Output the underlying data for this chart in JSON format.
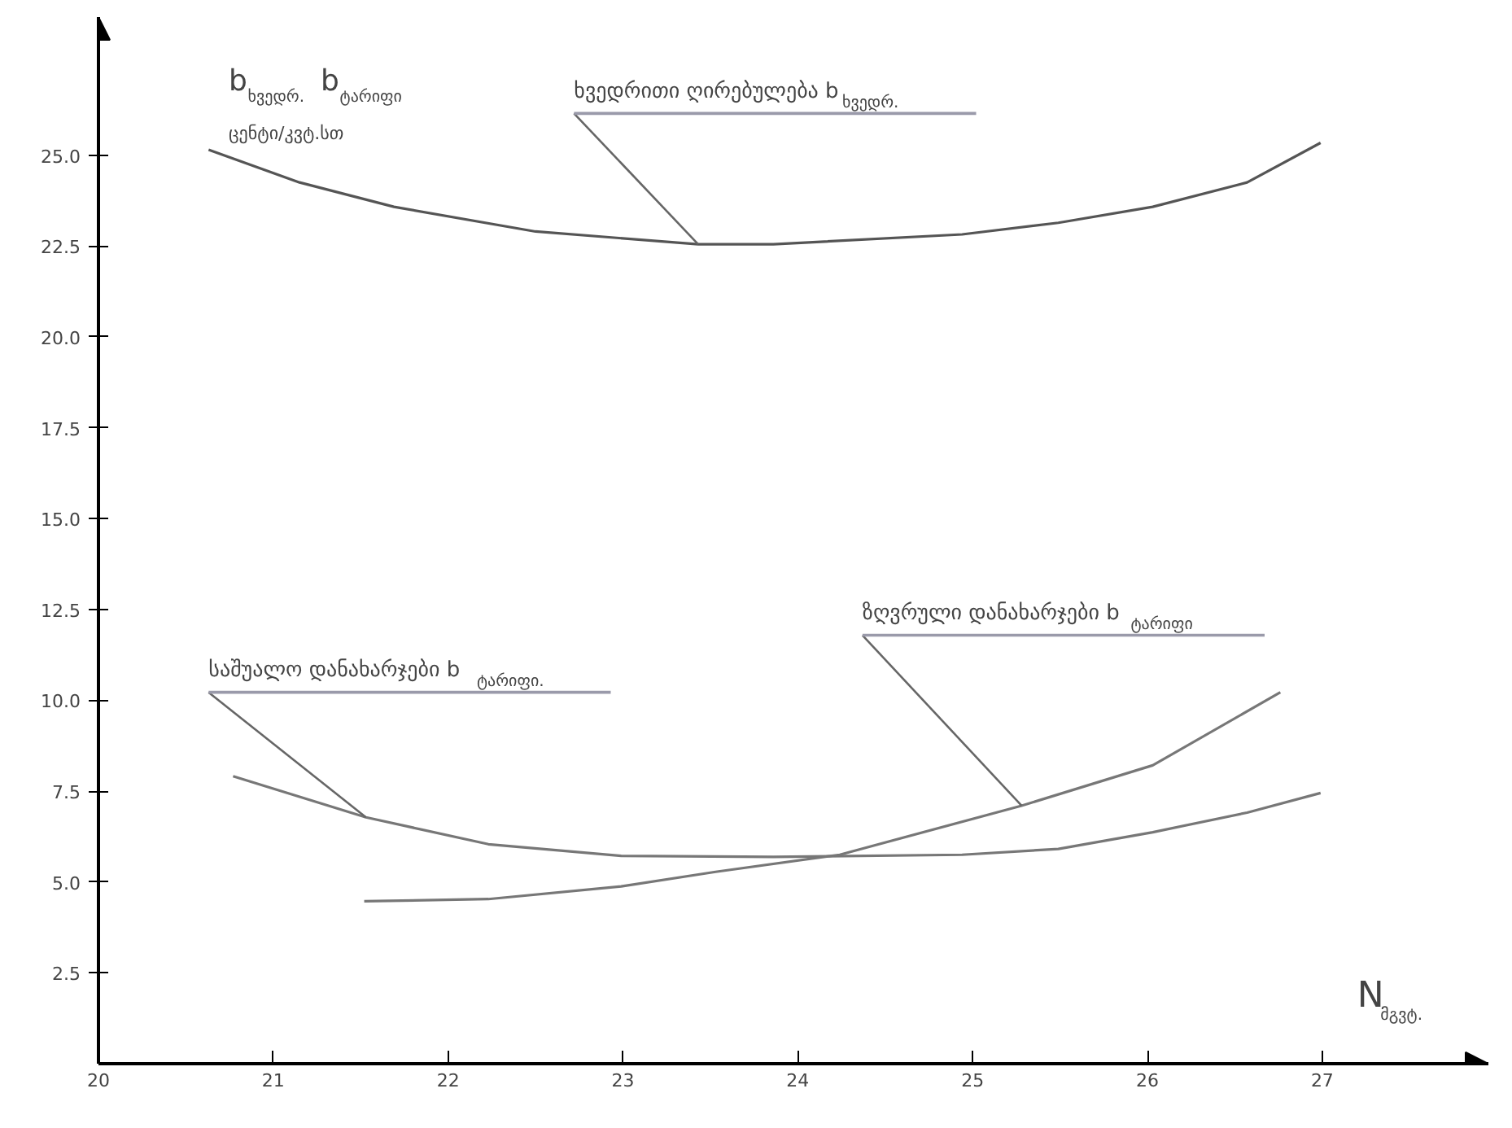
{
  "chart_data": {
    "type": "line",
    "ylabel": "b$_{ხვედრ.}$ b$_{ტარიფი}$\nცენტი/კვტ.სთ",
    "xlabel": "N$_{მგვტ.}$",
    "xlim": [
      20,
      27.95
    ],
    "ylim": [
      0,
      28.8
    ],
    "xticks": [
      20,
      21,
      22,
      23,
      24,
      25,
      26,
      27
    ],
    "yticks": [
      2.5,
      {
        "value": 5,
        "label": "5.0"
      },
      7.5,
      {
        "value": 10,
        "label": "10.0"
      },
      12.5,
      {
        "value": 15,
        "label": "15.0"
      },
      17.5,
      {
        "value": 20,
        "label": "20.0"
      },
      22.5,
      {
        "value": 25,
        "label": "25.0"
      }
    ],
    "grid": false,
    "marker": "none",
    "line_style": "solid",
    "series": [
      {
        "color": "#555555",
        "x": [
          20.63,
          21.15,
          21.69,
          22.5,
          23.43,
          23.86,
          24.94,
          25.49,
          26.03,
          26.57,
          26.99
        ],
        "values": [
          25.15,
          24.25,
          23.58,
          22.9,
          22.55,
          22.55,
          22.82,
          23.14,
          23.58,
          24.25,
          25.34
        ]
      },
      {
        "color": "#777777",
        "x": [
          20.77,
          21.53,
          22.23,
          22.99,
          23.86,
          24.94,
          25.49,
          26.03,
          26.57,
          26.99
        ],
        "values": [
          7.91,
          6.78,
          6.04,
          5.72,
          5.69,
          5.75,
          5.91,
          6.37,
          6.91,
          7.45
        ]
      },
      {
        "color": "#777777",
        "x": [
          21.52,
          22.23,
          22.99,
          23.53,
          24.24,
          25.28,
          26.03,
          26.76
        ],
        "values": [
          4.47,
          4.53,
          4.88,
          5.28,
          5.75,
          7.1,
          8.21,
          10.22
        ]
      }
    ],
    "annotations": [
      {
        "text": "ხვედრითი ღირებულება b$_{ხვედრ.}$",
        "x": 23.43,
        "y": 22.55
      },
      {
        "text": "საშუალო დანახარჯები b$_{ტარიფი.}$",
        "x": 21.53,
        "y": 6.78
      },
      {
        "text": "ზღვრული დანახარჯები b$_{ტარიფი}$",
        "x": 25.28,
        "y": 7.1
      }
    ]
  }
}
